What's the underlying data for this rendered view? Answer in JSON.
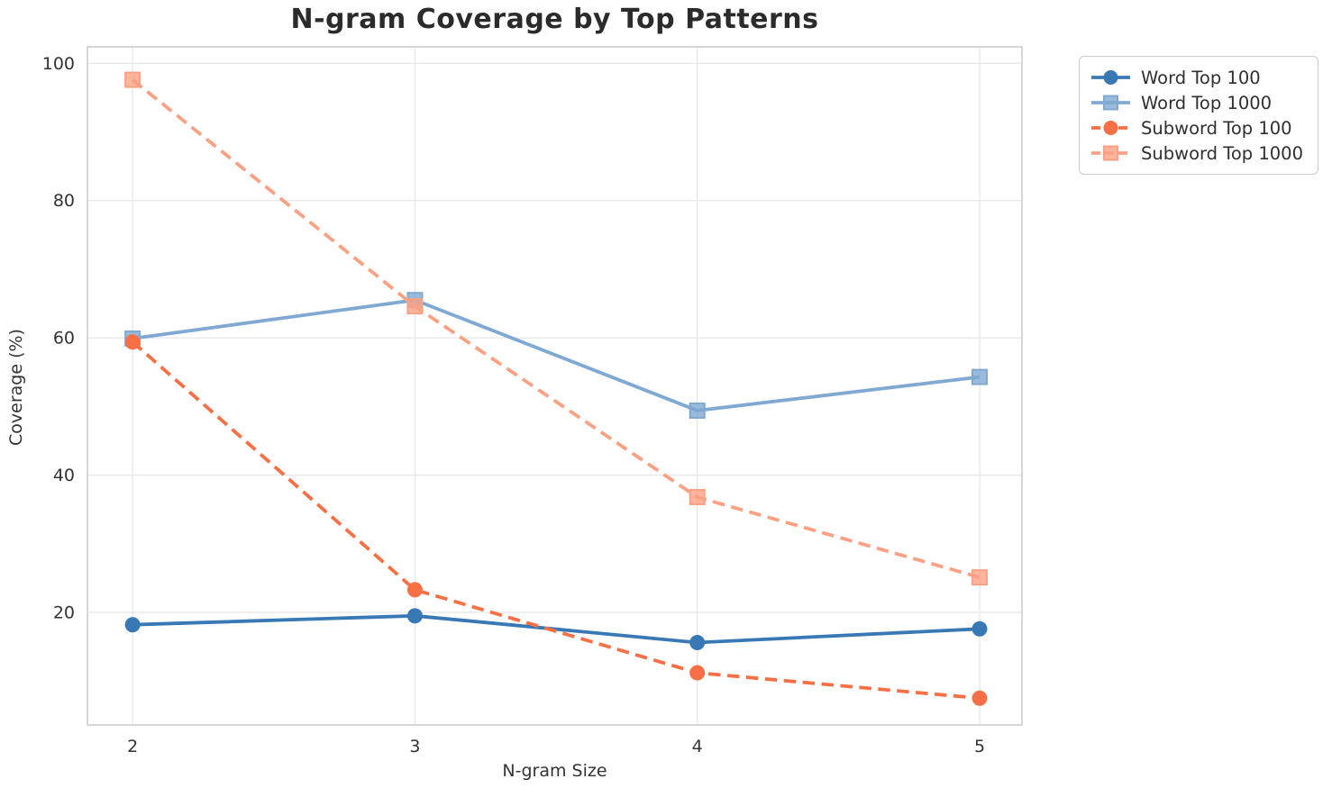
{
  "chart_data": {
    "type": "line",
    "title": "N-gram Coverage by Top Patterns",
    "xlabel": "N-gram Size",
    "ylabel": "Coverage (%)",
    "x": [
      2,
      3,
      4,
      5
    ],
    "xtick_labels": [
      "2",
      "3",
      "4",
      "5"
    ],
    "ytick_values": [
      20,
      40,
      60,
      80,
      100
    ],
    "ytick_labels": [
      "20",
      "40",
      "60",
      "80",
      "100"
    ],
    "xlim": [
      1.84,
      5.15
    ],
    "ylim": [
      3.6,
      102.4
    ],
    "grid": "both",
    "legend_position": "outside-top-right",
    "series": [
      {
        "name": "Word Top 100",
        "values": [
          18.2,
          19.5,
          15.6,
          17.6
        ],
        "color": "#3878b4",
        "line_style": "solid",
        "marker": "circle"
      },
      {
        "name": "Word Top 1000",
        "values": [
          59.9,
          65.5,
          49.4,
          54.3
        ],
        "color": "#7fa9d2",
        "line_style": "solid",
        "marker": "square"
      },
      {
        "name": "Subword Top 100",
        "values": [
          59.4,
          23.3,
          11.2,
          7.5
        ],
        "color": "#f76f45",
        "line_style": "dashed",
        "marker": "circle"
      },
      {
        "name": "Subword Top 1000",
        "values": [
          97.6,
          64.6,
          36.8,
          25.1
        ],
        "color": "#fba183",
        "line_style": "dashed",
        "marker": "square"
      }
    ],
    "colors": {
      "grid": "#e8e8e8",
      "spine": "#cccccc",
      "text": "#333333",
      "title": "#2b2b2b",
      "background": "#ffffff"
    }
  }
}
